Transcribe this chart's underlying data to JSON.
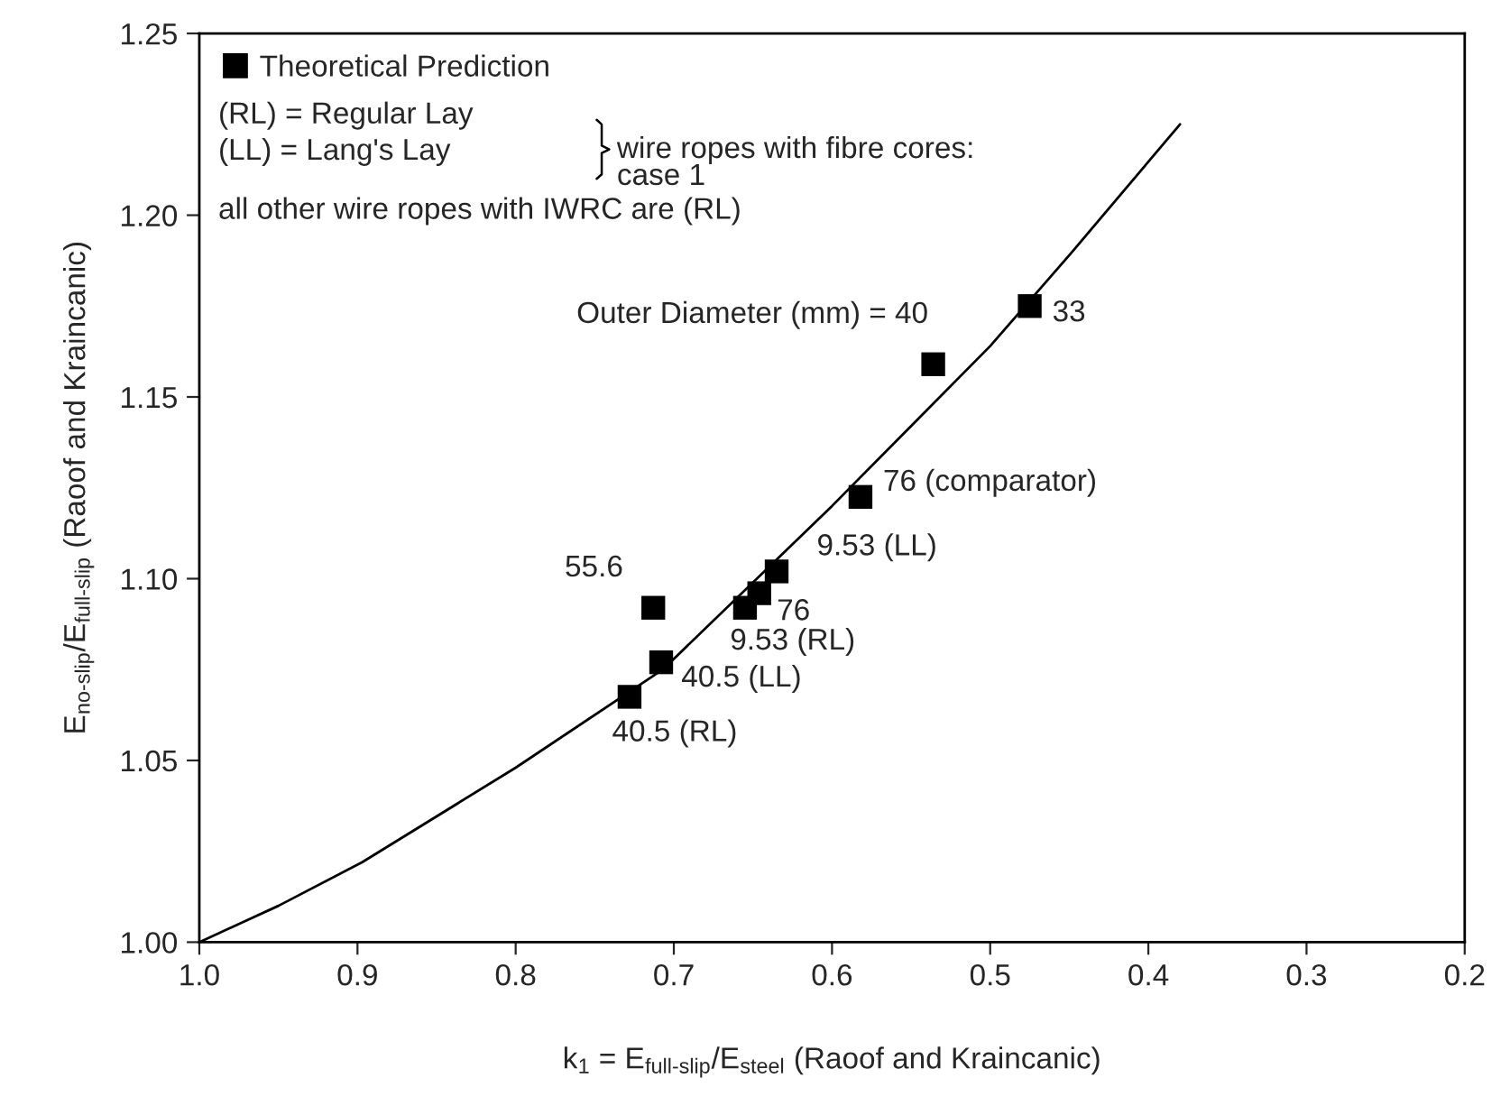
{
  "chart_data": {
    "type": "scatter",
    "xlabel": "k$_{1}$ = E$_{full‐slip}$/E$_{steel}$ (Raoof and Kraincanic)",
    "ylabel": "E$_{no‐slip}$/E$_{full‐slip}$ (Raoof and Kraincanic)",
    "xlim": [
      1.0,
      0.2
    ],
    "ylim": [
      1.0,
      1.25
    ],
    "xticks": [
      {
        "value": 1.0,
        "label": "1.0"
      },
      {
        "value": 0.9,
        "label": "0.9"
      },
      {
        "value": 0.8,
        "label": "0.8"
      },
      {
        "value": 0.7,
        "label": "0.7"
      },
      {
        "value": 0.6,
        "label": "0.6"
      },
      {
        "value": 0.5,
        "label": "0.5"
      },
      {
        "value": 0.4,
        "label": "0.4"
      },
      {
        "value": 0.3,
        "label": "0.3"
      },
      {
        "value": 0.2,
        "label": "0.2"
      }
    ],
    "yticks": [
      {
        "value": 1.0,
        "label": "1.00"
      },
      {
        "value": 1.05,
        "label": "1.05"
      },
      {
        "value": 1.1,
        "label": "1.10"
      },
      {
        "value": 1.15,
        "label": "1.15"
      },
      {
        "value": 1.2,
        "label": "1.20"
      },
      {
        "value": 1.25,
        "label": "1.25"
      }
    ],
    "grid": false,
    "legend": "top left",
    "series": [
      {
        "name": "Theoretical Prediction",
        "type": "scatter",
        "marker": "square",
        "color": "#000000",
        "x": [
          0.475,
          0.536,
          0.582,
          0.635,
          0.646,
          0.655,
          0.713,
          0.708,
          0.728
        ],
        "values": [
          1.175,
          1.159,
          1.1225,
          1.102,
          1.096,
          1.092,
          1.092,
          1.077,
          1.0675
        ]
      },
      {
        "type": "line",
        "marker": "none",
        "line_style": "solid",
        "color": "#000000",
        "x": [
          1.0,
          0.95,
          0.897,
          0.8,
          0.707,
          0.6,
          0.5,
          0.448,
          0.38
        ],
        "values": [
          1.0,
          1.01,
          1.022,
          1.048,
          1.075,
          1.12,
          1.164,
          1.19,
          1.225
        ]
      }
    ],
    "annotations": [
      "(RL) = Regular Lay",
      "(LL) = Lang's Lay",
      "wire ropes with fibre cores:\ncase 1",
      "all other wire ropes with IWRC are (RL)",
      {
        "text": "33",
        "x": 0.475,
        "y": 1.175
      },
      {
        "text": "Outer Diameter (mm) = 40",
        "x": 0.536,
        "y": 1.159
      },
      {
        "text": "76 (comparator)",
        "x": 0.582,
        "y": 1.1225
      },
      {
        "text": "9.53 (LL)",
        "x": 0.635,
        "y": 1.102
      },
      {
        "text": "76",
        "x": 0.646,
        "y": 1.096
      },
      {
        "text": "9.53 (RL)",
        "x": 0.655,
        "y": 1.092
      },
      {
        "text": "55.6",
        "x": 0.713,
        "y": 1.092
      },
      {
        "text": "40.5 (LL)",
        "x": 0.708,
        "y": 1.077
      },
      {
        "text": "40.5 (RL)",
        "x": 0.728,
        "y": 1.0675
      }
    ]
  }
}
